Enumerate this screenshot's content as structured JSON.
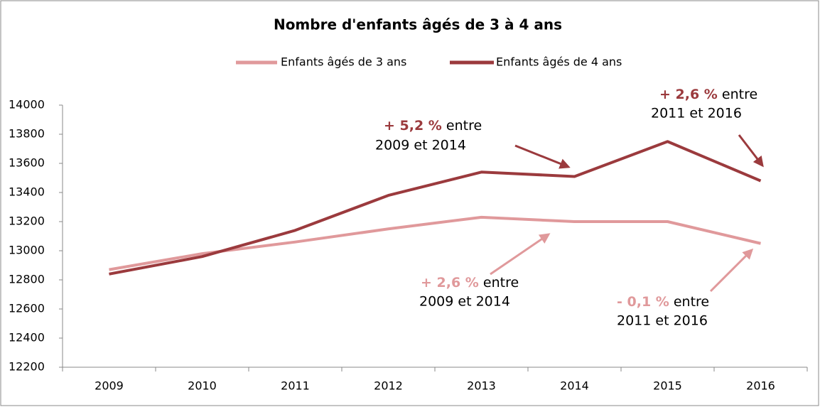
{
  "chart_data": {
    "type": "line",
    "title": "Nombre d'enfants âgés de 3 à 4 ans",
    "categories": [
      "2009",
      "2010",
      "2011",
      "2012",
      "2013",
      "2014",
      "2015",
      "2016"
    ],
    "series": [
      {
        "name": "Enfants âgés de 3 ans",
        "color": "#e0999b",
        "values": [
          12870,
          12980,
          13060,
          13150,
          13230,
          13200,
          13200,
          13050
        ]
      },
      {
        "name": "Enfants âgés de 4 ans",
        "color": "#9b3a3d",
        "values": [
          12840,
          12960,
          13140,
          13380,
          13540,
          13510,
          13750,
          13480
        ]
      }
    ],
    "ylim": [
      12200,
      14000
    ],
    "yticks": [
      12200,
      12400,
      12600,
      12800,
      13000,
      13200,
      13400,
      13600,
      13800,
      14000
    ],
    "grid": false,
    "legend": "top",
    "annotations": [
      {
        "highlight": "+ 5,2 %",
        "text": " entre",
        "line2": "2009 et 2014",
        "color": "#9b3a3d"
      },
      {
        "highlight": "+ 2,6 %",
        "text": " entre",
        "line2": "2011 et 2016",
        "color": "#9b3a3d"
      },
      {
        "highlight": "+ 2,6 %",
        "text": " entre",
        "line2": "2009 et 2014",
        "color": "#e0999b"
      },
      {
        "highlight": "- 0,1 %",
        "text": " entre",
        "line2": "2011 et 2016",
        "color": "#e0999b"
      }
    ]
  }
}
